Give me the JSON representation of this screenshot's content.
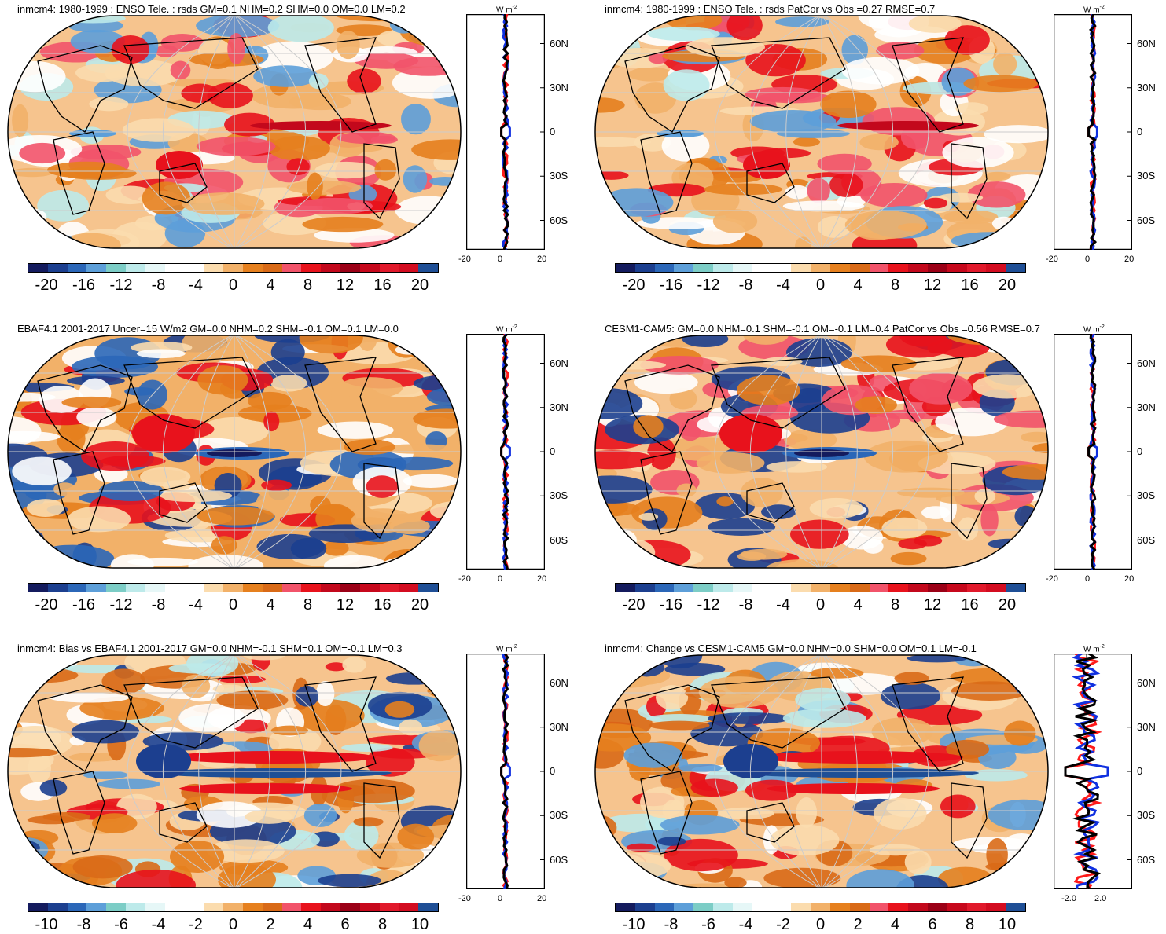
{
  "panels": [
    {
      "title": "inmcm4: 1980-1999 : ENSO Tele. : rsds GM=0.1 NHM=0.2 SHM=0.0 OM=0.0 LM=0.2",
      "style": "model",
      "scale": "a",
      "xticks": [
        "-20",
        "0",
        "20"
      ]
    },
    {
      "title": "inmcm4: 1980-1999 : ENSO Tele. : rsds PatCor vs Obs =0.27 RMSE=0.7",
      "style": "model",
      "scale": "a",
      "xticks": [
        "-20",
        "0",
        "20"
      ]
    },
    {
      "title": "EBAF4.1 2001-2017 Uncer=15 W/m2 GM=0.0 NHM=0.2 SHM=-0.1 OM=0.1 LM=0.0",
      "style": "obs",
      "scale": "a",
      "xticks": [
        "-20",
        "0",
        "20"
      ]
    },
    {
      "title": "CESM1-CAM5: GM=0.0 NHM=0.1 SHM=-0.1 OM=-0.1 LM=0.4 PatCor vs Obs =0.56 RMSE=0.7",
      "style": "cesm",
      "scale": "a",
      "xticks": [
        "-20",
        "0",
        "20"
      ]
    },
    {
      "title": "inmcm4: Bias vs EBAF4.1 2001-2017 GM=0.0 NHM=-0.1 SHM=0.1 OM=-0.1 LM=0.3",
      "style": "bias",
      "scale": "b",
      "xticks": [
        "-20",
        "0",
        "20"
      ]
    },
    {
      "title": "inmcm4: Change vs CESM1-CAM5 GM=0.0 NHM=0.0 SHM=0.0 OM=0.1 LM=-0.1",
      "style": "bias",
      "scale": "b",
      "xticks": [
        "-2.0",
        "2.0"
      ]
    }
  ],
  "colorbars": {
    "a": [
      "-20",
      "-16",
      "-12",
      "-8",
      "-4",
      "0",
      "4",
      "8",
      "12",
      "16",
      "20"
    ],
    "b": [
      "-10",
      "-8",
      "-6",
      "-4",
      "-2",
      "0",
      "2",
      "4",
      "6",
      "8",
      "10"
    ]
  },
  "lat_labels": [
    "60N",
    "30N",
    "0",
    "30S",
    "60S"
  ],
  "unit_label": "W m",
  "unit_exp": "-2",
  "colors": [
    "#141b5e",
    "#1c3f8f",
    "#2b67b8",
    "#5d9fd9",
    "#7ccdc6",
    "#bdeaea",
    "#e6f7f7",
    "#ffffff",
    "#ffffff",
    "#fbdcae",
    "#f2b169",
    "#e6801e",
    "#d96a17",
    "#f2536a",
    "#e8121c",
    "#c3081c",
    "#9b0016",
    "#c7081c",
    "#e1192b",
    "#d30c20",
    "#1f4f96"
  ],
  "profile_series": [
    {
      "color": "#ff1a1a"
    },
    {
      "color": "#1030e0"
    },
    {
      "color": "#000000"
    }
  ]
}
